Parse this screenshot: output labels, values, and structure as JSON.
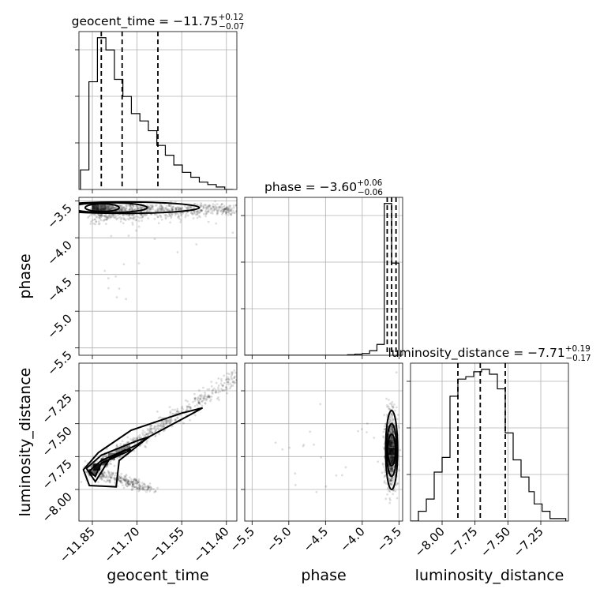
{
  "chart_data": {
    "type": "corner",
    "parameters": [
      "geocent_time",
      "phase",
      "luminosity_distance"
    ],
    "titles": [
      {
        "name": "geocent_time",
        "median": "−11.75",
        "plus": "+0.12",
        "minus": "−0.07"
      },
      {
        "name": "phase",
        "median": "−3.60",
        "plus": "+0.06",
        "minus": "−0.06"
      },
      {
        "name": "luminosity_distance",
        "median": "−7.71",
        "plus": "+0.19",
        "minus": "−0.17"
      }
    ],
    "ranges": {
      "geocent_time": [
        -11.895,
        -11.365
      ],
      "phase": [
        -5.6,
        -3.45
      ],
      "luminosity_distance": [
        -8.24,
        -7.04
      ]
    },
    "ticks": {
      "geocent_time": {
        "values": [
          -11.85,
          -11.7,
          -11.55,
          -11.4
        ],
        "labels": [
          "−11.85",
          "−11.70",
          "−11.55",
          "−11.40"
        ]
      },
      "phase": {
        "values": [
          -5.5,
          -5.0,
          -4.5,
          -4.0,
          -3.5
        ],
        "labels": [
          "−5.5",
          "−5.0",
          "−4.5",
          "−4.0",
          "−3.5"
        ]
      },
      "luminosity_distance": {
        "values": [
          -8.0,
          -7.75,
          -7.5,
          -7.25
        ],
        "labels": [
          "−8.00",
          "−7.75",
          "−7.50",
          "−7.25"
        ]
      }
    },
    "quantiles": {
      "geocent_time": [
        -11.82,
        -11.75,
        -11.63
      ],
      "phase": [
        -3.66,
        -3.6,
        -3.54
      ],
      "luminosity_distance": [
        -7.88,
        -7.71,
        -7.52
      ]
    },
    "histograms": {
      "geocent_time": {
        "edges": [
          -11.89,
          -11.8615,
          -11.833,
          -11.8045,
          -11.776,
          -11.7475,
          -11.719,
          -11.6905,
          -11.662,
          -11.6335,
          -11.605,
          -11.5765,
          -11.548,
          -11.5195,
          -11.491,
          -11.4625,
          -11.434,
          -11.4055,
          -11.377
        ],
        "counts": [
          8,
          44,
          62,
          57,
          45,
          38,
          31,
          28,
          24,
          18,
          14,
          10,
          7,
          5,
          3,
          2,
          1,
          0
        ]
      },
      "phase": {
        "edges": [
          -5.6,
          -5.5,
          -5.4,
          -5.3,
          -5.2,
          -5.1,
          -5.0,
          -4.9,
          -4.8,
          -4.7,
          -4.6,
          -4.5,
          -4.4,
          -4.3,
          -4.2,
          -4.1,
          -4.0,
          -3.9,
          -3.8,
          -3.7,
          -3.6,
          -3.5
        ],
        "counts": [
          0,
          0,
          0,
          0,
          0,
          0,
          0,
          0,
          0,
          0,
          0,
          0,
          0,
          0,
          0.3,
          0.6,
          1,
          2.5,
          6,
          84,
          51
        ]
      },
      "luminosity_distance": {
        "edges": [
          -8.24,
          -8.18,
          -8.12,
          -8.06,
          -8.0,
          -7.94,
          -7.88,
          -7.82,
          -7.76,
          -7.7,
          -7.64,
          -7.58,
          -7.52,
          -7.46,
          -7.4,
          -7.34,
          -7.3,
          -7.24,
          -7.18,
          -7.12,
          -7.06
        ],
        "counts": [
          0,
          4,
          9,
          20,
          26,
          51,
          58,
          59,
          61,
          62,
          60,
          54,
          36,
          25,
          18,
          12,
          7,
          4,
          1,
          1
        ]
      }
    },
    "grid": true
  }
}
